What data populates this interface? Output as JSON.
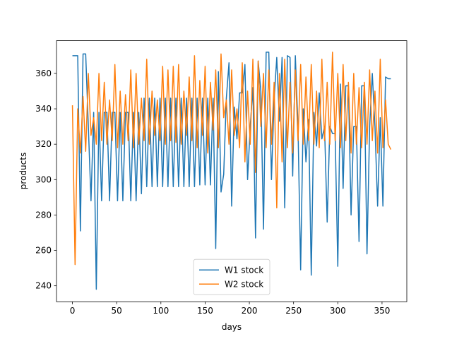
{
  "chart_data": {
    "type": "line",
    "xlabel": "days",
    "ylabel": "products",
    "x": [
      0,
      3,
      6,
      9,
      12,
      15,
      18,
      21,
      24,
      27,
      30,
      33,
      36,
      39,
      42,
      45,
      48,
      51,
      54,
      57,
      60,
      63,
      66,
      69,
      72,
      75,
      78,
      81,
      84,
      87,
      90,
      93,
      96,
      99,
      102,
      105,
      108,
      111,
      114,
      117,
      120,
      123,
      126,
      129,
      132,
      135,
      138,
      141,
      144,
      147,
      150,
      153,
      156,
      159,
      162,
      165,
      168,
      171,
      174,
      177,
      180,
      183,
      186,
      189,
      192,
      195,
      198,
      201,
      204,
      207,
      210,
      213,
      216,
      219,
      222,
      225,
      228,
      231,
      234,
      237,
      240,
      243,
      246,
      249,
      252,
      255,
      258,
      261,
      264,
      267,
      270,
      273,
      276,
      279,
      282,
      285,
      288,
      291,
      294,
      297,
      300,
      303,
      306,
      309,
      312,
      315,
      318,
      321,
      324,
      327,
      330,
      333,
      336,
      339,
      342,
      345,
      348,
      351,
      354,
      357,
      360
    ],
    "series": [
      {
        "name": "W1 stock",
        "color": "#1f77b4",
        "values": [
          370,
          370,
          370,
          271,
          371,
          371,
          330,
          288,
          338,
          238,
          338,
          288,
          338,
          338,
          288,
          338,
          338,
          288,
          338,
          288,
          338,
          338,
          288,
          338,
          288,
          338,
          292,
          346,
          296,
          346,
          296,
          346,
          296,
          346,
          296,
          346,
          296,
          346,
          296,
          346,
          296,
          346,
          296,
          346,
          296,
          346,
          296,
          346,
          297,
          346,
          297,
          346,
          297,
          346,
          261,
          361,
          293,
          303,
          346,
          366,
          285,
          341,
          323,
          349,
          349,
          365,
          300,
          330,
          352,
          267,
          367,
          350,
          272,
          372,
          372,
          300,
          345,
          369,
          333,
          369,
          284,
          370,
          369,
          302,
          370,
          330,
          249,
          340,
          310,
          334,
          246,
          338,
          319,
          349,
          323,
          330,
          276,
          330,
          326,
          326,
          251,
          354,
          295,
          353,
          353,
          280,
          330,
          330,
          265,
          353,
          353,
          258,
          330,
          360,
          330,
          285,
          335,
          285,
          358,
          357,
          357
        ]
      },
      {
        "name": "W2 stock",
        "color": "#ff7f0e",
        "values": [
          342,
          252,
          340,
          315,
          347,
          316,
          360,
          325,
          335,
          320,
          360,
          322,
          355,
          320,
          345,
          322,
          365,
          318,
          350,
          320,
          348,
          322,
          362,
          318,
          360,
          320,
          346,
          322,
          368,
          320,
          350,
          325,
          345,
          322,
          364,
          320,
          362,
          322,
          364,
          321,
          365,
          320,
          350,
          325,
          358,
          322,
          370,
          318,
          356,
          325,
          364,
          315,
          355,
          328,
          362,
          318,
          371,
          335,
          345,
          320,
          362,
          325,
          340,
          318,
          366,
          310,
          350,
          320,
          368,
          304,
          367,
          330,
          360,
          318,
          362,
          320,
          355,
          284,
          360,
          310,
          368,
          318,
          355,
          315,
          362,
          322,
          365,
          320,
          358,
          322,
          365,
          320,
          350,
          318,
          368,
          322,
          355,
          320,
          372,
          322,
          360,
          318,
          365,
          322,
          355,
          315,
          360,
          320,
          352,
          318,
          355,
          320,
          362,
          322,
          350,
          315,
          368,
          318,
          345,
          320,
          317
        ]
      }
    ],
    "xlim": [
      -18,
      378
    ],
    "ylim": [
      231,
      378.5
    ],
    "xticks": [
      0,
      50,
      100,
      150,
      200,
      250,
      300,
      350
    ],
    "yticks": [
      240,
      260,
      280,
      300,
      320,
      340,
      360
    ],
    "legend": "lower center"
  }
}
